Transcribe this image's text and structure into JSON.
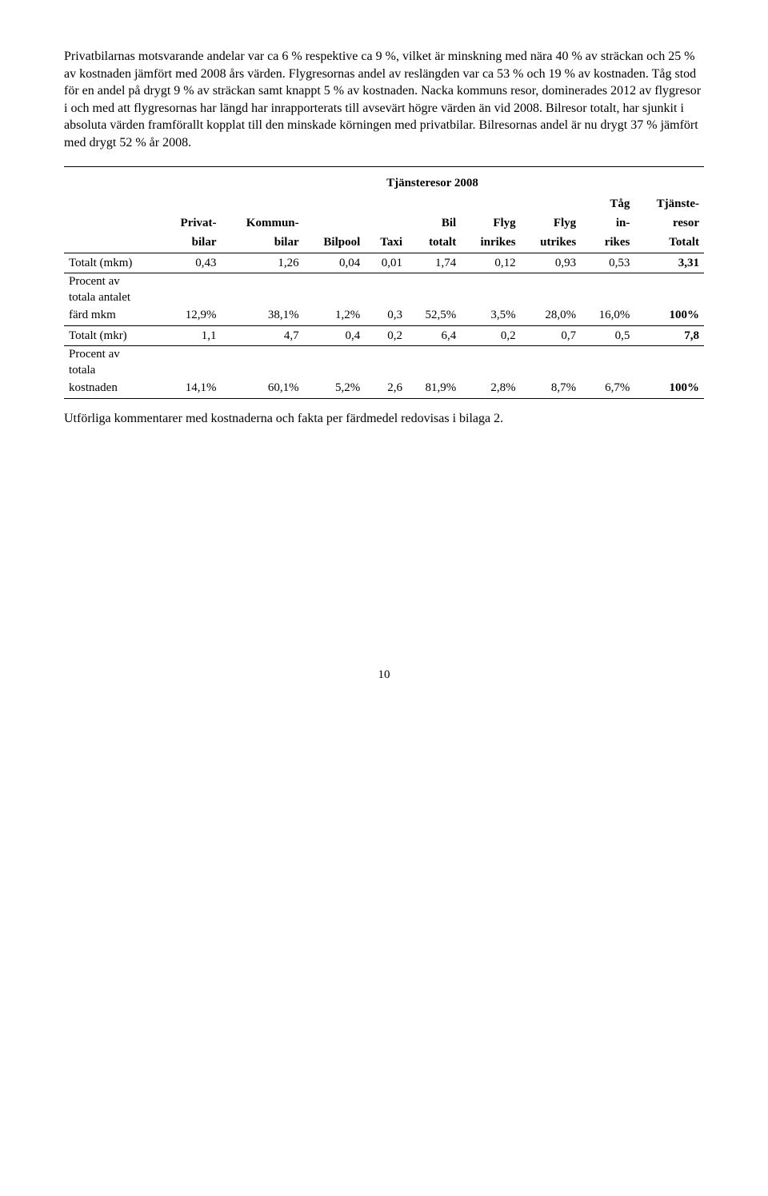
{
  "paragraph1": "Privatbilarnas motsvarande andelar var ca 6 % respektive ca 9 %, vilket är minskning med nära 40 % av sträckan och 25 % av kostnaden jämfört med 2008 års värden. Flygresornas andel av reslängden var ca 53 % och 19 % av kostnaden. Tåg stod för en andel på drygt 9 % av sträckan samt knappt 5 % av kostnaden. Nacka kommuns resor, dominerades 2012 av flygresor i och med att flygresornas har längd har inrapporterats till avsevärt högre värden än vid 2008. Bilresor totalt, har sjunkit i absoluta värden framförallt kopplat till den minskade körningen med privatbilar. Bilresornas andel är nu drygt 37 % jämfört med drygt 52 % år 2008.",
  "table": {
    "title": "Tjänsteresor 2008",
    "columns": {
      "c0": "",
      "c1a": "Privat-",
      "c1b": "bilar",
      "c2a": "Kommun-",
      "c2b": "bilar",
      "c3": "Bilpool",
      "c4": "Taxi",
      "c5a": "Bil",
      "c5b": "totalt",
      "c6a": "Flyg",
      "c6b": "inrikes",
      "c7a": "Flyg",
      "c7b": "utrikes",
      "c8a": "Tåg",
      "c8b": "in-",
      "c8c": "rikes",
      "c9a": "Tjänste-",
      "c9b": "resor",
      "c9c": "Totalt"
    },
    "rows": [
      {
        "label": "Totalt (mkm)",
        "v": [
          "0,43",
          "1,26",
          "0,04",
          "0,01",
          "1,74",
          "0,12",
          "0,93",
          "0,53",
          "3,31"
        ],
        "boldLast": true
      },
      {
        "labelLines": [
          "Procent av",
          "totala antalet",
          "färd mkm"
        ],
        "v": [
          "12,9%",
          "38,1%",
          "1,2%",
          "0,3",
          "52,5%",
          "3,5%",
          "28,0%",
          "16,0%",
          "100%"
        ],
        "boldLast": true
      },
      {
        "label": "Totalt (mkr)",
        "v": [
          "1,1",
          "4,7",
          "0,4",
          "0,2",
          "6,4",
          "0,2",
          "0,7",
          "0,5",
          "7,8"
        ],
        "boldLast": true
      },
      {
        "labelLines": [
          "Procent av",
          "totala",
          "kostnaden"
        ],
        "v": [
          "14,1%",
          "60,1%",
          "5,2%",
          "2,6",
          "81,9%",
          "2,8%",
          "8,7%",
          "6,7%",
          "100%"
        ],
        "boldLast": true
      }
    ]
  },
  "paragraph2": "Utförliga kommentarer med kostnaderna och fakta per färdmedel redovisas i bilaga 2.",
  "pageNumber": "10"
}
